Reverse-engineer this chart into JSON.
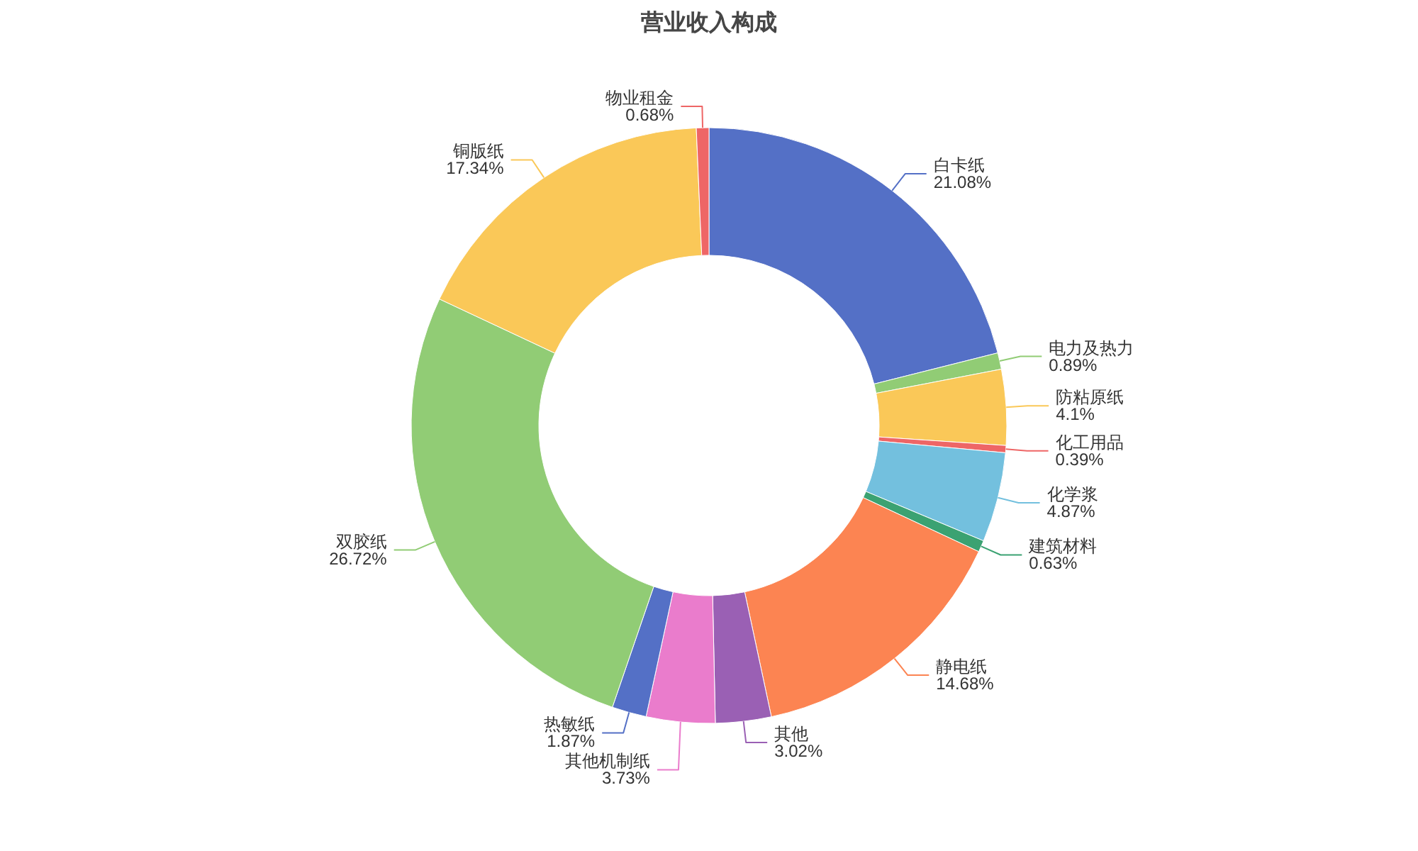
{
  "chart_data": {
    "type": "donut",
    "title": "营业收入构成",
    "categories": [
      "白卡纸",
      "电力及热力",
      "防粘原纸",
      "化工用品",
      "化学浆",
      "建筑材料",
      "静电纸",
      "其他",
      "其他机制纸",
      "热敏纸",
      "双胶纸",
      "铜版纸",
      "物业租金"
    ],
    "values": [
      21.08,
      0.89,
      4.1,
      0.39,
      4.87,
      0.63,
      14.68,
      3.02,
      3.73,
      1.87,
      26.72,
      17.34,
      0.68
    ],
    "colors": [
      "#5470c6",
      "#91cc75",
      "#fac858",
      "#ee6666",
      "#73c0de",
      "#3ba272",
      "#fc8452",
      "#9a60b4",
      "#ea7ccc",
      "#5470c6",
      "#91cc75",
      "#fac858",
      "#ee6666"
    ],
    "value_labels": [
      "21.08%",
      "0.89%",
      "4.1%",
      "0.39%",
      "4.87%",
      "0.63%",
      "14.68%",
      "3.02%",
      "3.73%",
      "1.87%",
      "26.72%",
      "17.34%",
      "0.68%"
    ]
  }
}
